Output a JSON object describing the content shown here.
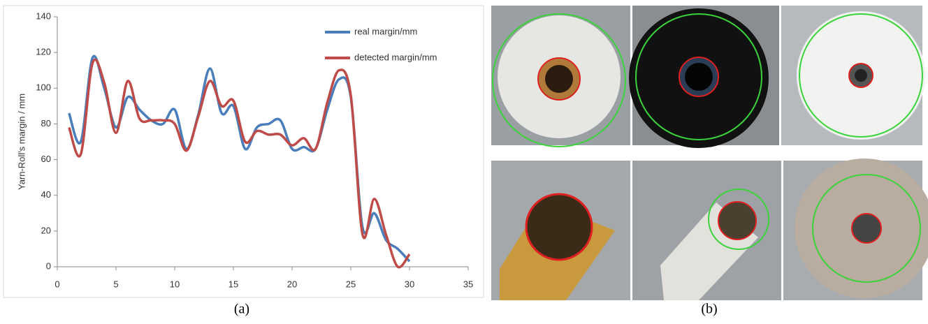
{
  "chart_data": {
    "type": "line",
    "ylabel": "Yarn-Roll's margin / mm",
    "x": [
      1,
      2,
      3,
      4,
      5,
      6,
      7,
      8,
      9,
      10,
      11,
      12,
      13,
      14,
      15,
      16,
      17,
      18,
      19,
      20,
      21,
      22,
      23,
      24,
      25,
      26,
      27,
      28,
      29,
      30
    ],
    "series": [
      {
        "name": "real margin/mm",
        "color": "#4a7ebb",
        "values": [
          86,
          70,
          117,
          100,
          78,
          95,
          88,
          82,
          80,
          88,
          66,
          85,
          111,
          86,
          90,
          66,
          78,
          80,
          82,
          66,
          67,
          66,
          88,
          105,
          95,
          22,
          30,
          15,
          10,
          3
        ]
      },
      {
        "name": "detected margin/mm",
        "color": "#be4b48",
        "values": [
          78,
          63,
          114,
          103,
          75,
          104,
          83,
          82,
          82,
          80,
          65,
          84,
          104,
          90,
          93,
          70,
          76,
          74,
          74,
          68,
          72,
          66,
          92,
          110,
          96,
          18,
          38,
          18,
          0,
          7
        ]
      }
    ],
    "xlim": [
      0,
      35
    ],
    "xticks": [
      0,
      5,
      10,
      15,
      20,
      25,
      30,
      35
    ],
    "ylim": [
      0,
      140
    ],
    "yticks": [
      0,
      20,
      40,
      60,
      80,
      100,
      120,
      140
    ],
    "legend": "top-right"
  },
  "panel_labels": [
    "(a)",
    "(b)"
  ]
}
